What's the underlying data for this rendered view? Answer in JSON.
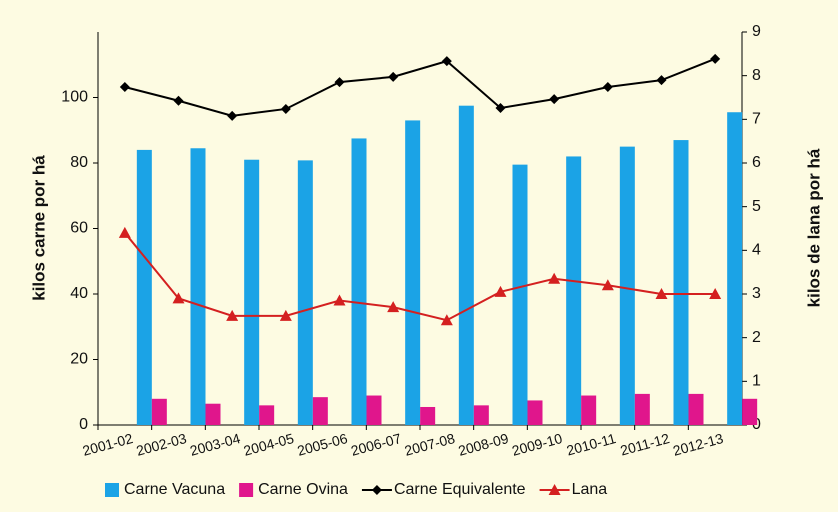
{
  "chart_data": {
    "type": "bar_line",
    "categories": [
      "2001-02",
      "2002-03",
      "2003-04",
      "2004-05",
      "2005-06",
      "2006-07",
      "2007-08",
      "2008-09",
      "2009-10",
      "2010-11",
      "2011-12",
      "2012-13"
    ],
    "series": [
      {
        "name": "Carne Vacuna",
        "color": "#1ba3e6",
        "kind": "bar",
        "values": [
          84,
          84.5,
          81,
          80.8,
          87.5,
          93,
          97.5,
          79.5,
          82,
          85,
          87,
          95.5
        ]
      },
      {
        "name": "Carne Ovina",
        "color": "#e0168c",
        "kind": "bar",
        "values": [
          8,
          6.5,
          6,
          8.5,
          9,
          5.5,
          6,
          7.5,
          9,
          9.5,
          9.5,
          8
        ]
      },
      {
        "name": "Carne Equivalente",
        "color": "#000000",
        "kind": "line",
        "marker": "diamond",
        "values": [
          103.2,
          99,
          94.4,
          96.5,
          104.7,
          106.3,
          111.1,
          96.8,
          99.5,
          103.2,
          105.3,
          111.8
        ]
      },
      {
        "name": "Lana",
        "color": "#d42020",
        "kind": "line",
        "marker": "triangle",
        "axis": "y2",
        "values": [
          4.4,
          2.9,
          2.5,
          2.5,
          2.85,
          2.7,
          2.4,
          3.05,
          3.35,
          3.2,
          3.0,
          3.0
        ]
      }
    ],
    "ylabel": "kilos carne  por há",
    "y2label": "kilos de lana  por há",
    "ylim": [
      0,
      120
    ],
    "yticks": [
      0,
      20,
      40,
      60,
      80,
      100
    ],
    "y2lim": [
      0,
      9
    ],
    "y2ticks": [
      0,
      1,
      2,
      3,
      4,
      5,
      6,
      7,
      8,
      9
    ],
    "legend": "bottom"
  }
}
